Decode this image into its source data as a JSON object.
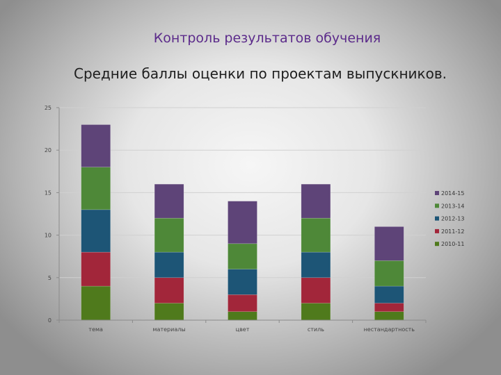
{
  "slide": {
    "title": "Контроль результатов обучения",
    "subtitle": "Средние баллы оценки по проектам выпускников."
  },
  "chart_data": {
    "type": "bar",
    "stacked": true,
    "categories": [
      "тема",
      "материалы",
      "цвет",
      "стиль",
      "нестандартность"
    ],
    "series": [
      {
        "name": "2010-11",
        "color": "#4f7a1c",
        "values": [
          4,
          2,
          1,
          2,
          1
        ]
      },
      {
        "name": "2011-12",
        "color": "#a2263a",
        "values": [
          4,
          3,
          2,
          3,
          1
        ]
      },
      {
        "name": "2012-13",
        "color": "#1d5576",
        "values": [
          5,
          3,
          3,
          3,
          2
        ]
      },
      {
        "name": "2013-14",
        "color": "#4e8838",
        "values": [
          5,
          4,
          3,
          4,
          3
        ]
      },
      {
        "name": "2014-15",
        "color": "#5e4478",
        "values": [
          5,
          4,
          5,
          4,
          4
        ]
      }
    ],
    "yticks": [
      0,
      5,
      10,
      15,
      20,
      25
    ],
    "ylim": [
      0,
      25
    ],
    "grid": true,
    "legend": "right"
  }
}
